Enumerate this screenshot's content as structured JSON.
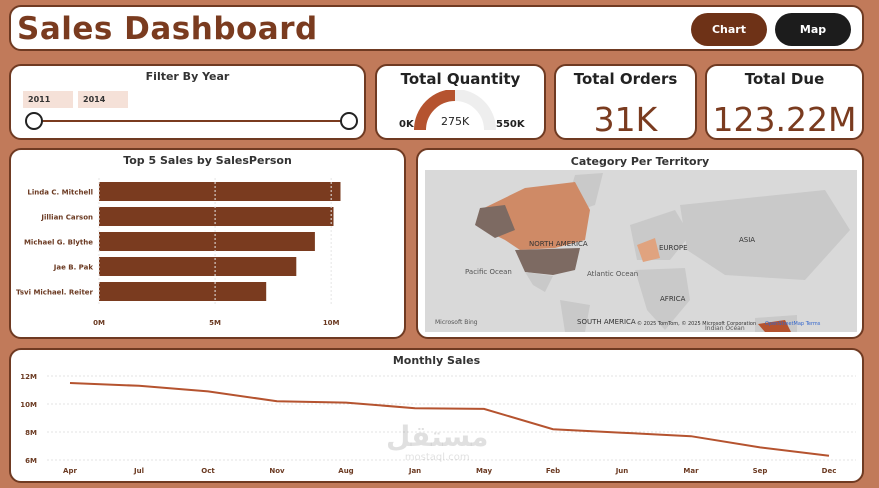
{
  "header": {
    "title": "Sales Dashboard",
    "chart_button": "Chart",
    "map_button": "Map"
  },
  "filter": {
    "title": "Filter By Year",
    "start_year": "2011",
    "end_year": "2014"
  },
  "kpis": {
    "total_quantity": {
      "title": "Total Quantity",
      "min": "0K",
      "value": "275K",
      "max": "550K",
      "gauge_fraction": 0.5
    },
    "total_orders": {
      "title": "Total Orders",
      "value": "31K"
    },
    "total_due": {
      "title": "Total Due",
      "value": "123.22M"
    }
  },
  "map": {
    "title": "Category Per Territory",
    "labels": {
      "north_america": "NORTH AMERICA",
      "europe": "EUROPE",
      "asia": "ASIA",
      "pacific": "Pacific Ocean",
      "atlantic": "Atlantic Ocean",
      "africa": "AFRICA",
      "south_america": "SOUTH AMERICA",
      "indian": "Indian Ocean"
    },
    "attribution": "© 2025 TomTom, © 2025 Microsoft Corporation",
    "links": "OpenStreetMap  Terms",
    "logo": "Microsoft Bing"
  },
  "colors": {
    "accent": "#7a3b1f",
    "bar": "#7a3b1f",
    "line": "#b5532f",
    "background": "#C17A5A"
  },
  "watermark": {
    "text": "مستقل",
    "sub": "mostaql.com"
  },
  "chart_data": [
    {
      "type": "bar",
      "title": "Top 5 Sales by SalesPerson",
      "categories": [
        "Linda C. Mitchell",
        "Jillian Carson",
        "Michael G. Blythe",
        "Jae B. Pak",
        "Tsvi Michael. Reiter"
      ],
      "values": [
        10.4,
        10.1,
        9.3,
        8.5,
        7.2
      ],
      "xticks": [
        "0M",
        "5M",
        "10M"
      ],
      "xlim": [
        0,
        11.5
      ],
      "unit": "M"
    },
    {
      "type": "line",
      "title": "Monthly Sales",
      "categories": [
        "Apr",
        "Jul",
        "Oct",
        "Nov",
        "Aug",
        "Jan",
        "May",
        "Feb",
        "Jun",
        "Mar",
        "Sep",
        "Dec"
      ],
      "values": [
        11.5,
        11.3,
        10.9,
        10.2,
        10.1,
        9.7,
        9.65,
        8.2,
        7.95,
        7.7,
        6.9,
        6.3
      ],
      "yticks": [
        "12M",
        "10M",
        "8M",
        "6M"
      ],
      "ylim": [
        6,
        12
      ]
    }
  ]
}
